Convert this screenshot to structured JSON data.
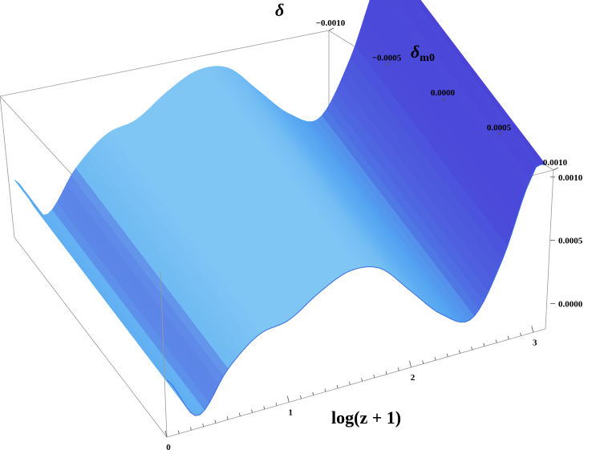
{
  "chart_data": {
    "type": "surface3d",
    "title": "",
    "zlabel": "δ",
    "ylabel_main": "δ",
    "ylabel_sub": "m0",
    "xlabel": "log(z + 1)",
    "x_ticks": [
      "0",
      "1",
      "2",
      "3"
    ],
    "y_ticks": [
      "0.0010",
      "0.0005",
      "0.0000",
      "−0.0005",
      "−0.0010"
    ],
    "z_ticks": [
      "0.0010",
      "0.0005",
      "0.0000"
    ],
    "xlim": [
      0,
      3.1
    ],
    "ylim": [
      -0.001,
      0.001
    ],
    "zlim": [
      -0.0002,
      0.0011
    ],
    "profile": {
      "x": [
        0.0,
        0.25,
        0.5,
        0.75,
        1.0,
        1.25,
        1.5,
        1.75,
        2.0,
        2.25,
        2.5,
        2.75,
        3.0,
        3.1
      ],
      "delta": [
        0.00025,
        -0.0001,
        0.0002,
        0.0004,
        0.00045,
        0.0006,
        0.0007,
        0.00065,
        0.0004,
        0.00015,
        5e-05,
        0.00045,
        0.00105,
        0.0011
      ]
    },
    "colors": {
      "light": "#7fc6f5",
      "mid": "#55a6f2",
      "dark": "#4a3fd6"
    }
  }
}
